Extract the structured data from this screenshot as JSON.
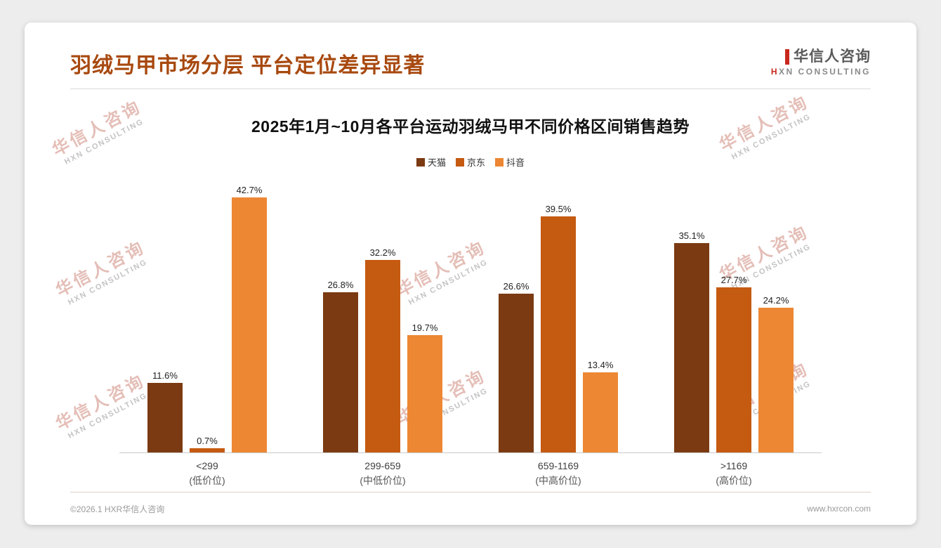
{
  "page": {
    "title": "羽绒马甲市场分层 平台定位差异显著",
    "title_color": "#a8490f",
    "logo": {
      "name": "华信人咨询",
      "subtitle": "HXN CONSULTING",
      "accent_color": "#c8291e"
    },
    "watermark": {
      "line1": "华信人咨询",
      "line2": "HXN CONSULTING"
    },
    "footer": {
      "copyright": "©2026.1 HXR华信人咨询",
      "website": "www.hxrcon.com"
    }
  },
  "chart_data": {
    "type": "bar",
    "title": "2025年1月~10月各平台运动羽绒马甲不同价格区间销售趋势",
    "xlabel": "",
    "ylabel": "",
    "value_suffix": "%",
    "ylim": [
      0,
      45
    ],
    "grid": false,
    "legend_position": "top",
    "categories": [
      {
        "label": "<299",
        "sublabel": "(低价位)"
      },
      {
        "label": "299-659",
        "sublabel": "(中低价位)"
      },
      {
        "label": "659-1169",
        "sublabel": "(中高价位)"
      },
      {
        "label": ">1169",
        "sublabel": "(高价位)"
      }
    ],
    "series": [
      {
        "name": "天猫",
        "color": "#7b3a12",
        "values": [
          11.6,
          26.8,
          26.6,
          35.1
        ]
      },
      {
        "name": "京东",
        "color": "#c55a11",
        "values": [
          0.7,
          32.2,
          39.5,
          27.7
        ]
      },
      {
        "name": "抖音",
        "color": "#ed8733",
        "values": [
          42.7,
          19.7,
          13.4,
          24.2
        ]
      }
    ]
  }
}
